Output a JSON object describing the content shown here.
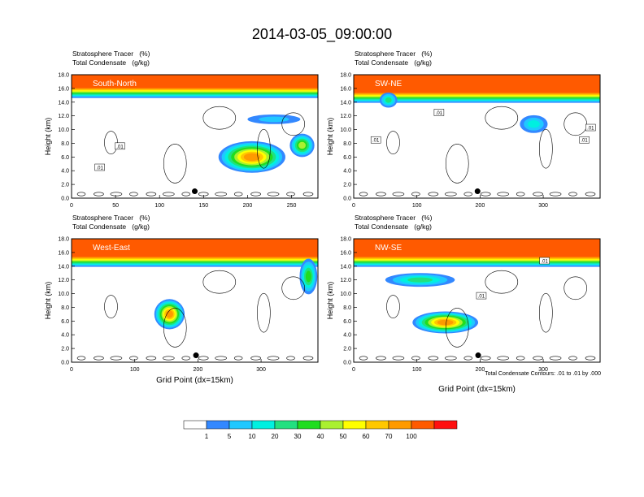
{
  "page": {
    "title": "2014-03-05_09:00:00"
  },
  "panel_header": {
    "line1": "Stratosphere Tracer   (%)",
    "line2": "Total Condensate   (g/kg)"
  },
  "axes": {
    "ylabel": "Height (km)",
    "xlabel": "Grid Point (dx=15km)",
    "yticks": [
      "0.0",
      "2.0",
      "4.0",
      "6.0",
      "8.0",
      "10.0",
      "12.0",
      "14.0",
      "16.0",
      "18.0"
    ]
  },
  "contour_note": "Total Condensate Contours: .01 to .01 by .000",
  "colorbar": {
    "labels": [
      "1",
      "5",
      "10",
      "20",
      "30",
      "40",
      "50",
      "60",
      "70",
      "100"
    ],
    "colors": [
      "#ffffff",
      "#3388ff",
      "#20c8ff",
      "#00f0e0",
      "#22e080",
      "#20dd20",
      "#aaf030",
      "#ffff00",
      "#ffc800",
      "#ff9a00",
      "#ff5a00",
      "#ff1010"
    ]
  },
  "chart_data": [
    {
      "type": "heatmap",
      "label": "South-North",
      "xlim": [
        0,
        280
      ],
      "ylim": [
        0,
        18
      ],
      "xticks": [
        "0",
        "50",
        "100",
        "150",
        "200",
        "250"
      ],
      "marker": {
        "x": 140,
        "y": 1.0
      },
      "contour_labels": [
        {
          "text": ".01",
          "x": 55,
          "y": 7.6
        },
        {
          "text": ".01",
          "x": 32,
          "y": 4.5
        }
      ],
      "tracer_features": [
        {
          "shape": "band",
          "x0": 0,
          "x1": 280,
          "y0": 16.2,
          "y1": 18,
          "value": 100
        },
        {
          "shape": "blob",
          "cx": 205,
          "cy": 6.0,
          "rx": 38,
          "ry": 2.3,
          "value": 70
        },
        {
          "shape": "blob",
          "cx": 262,
          "cy": 7.7,
          "rx": 14,
          "ry": 1.7,
          "value": 40
        },
        {
          "shape": "blob",
          "cx": 230,
          "cy": 11.5,
          "rx": 30,
          "ry": 0.7,
          "value": 5
        }
      ]
    },
    {
      "type": "heatmap",
      "label": "SW-NE",
      "xlim": [
        0,
        390
      ],
      "ylim": [
        0,
        18
      ],
      "xticks": [
        "0",
        "100",
        "200",
        "300"
      ],
      "marker": {
        "x": 196,
        "y": 1.0
      },
      "contour_labels": [
        {
          "text": ".01",
          "x": 135,
          "y": 12.5
        },
        {
          "text": ".01",
          "x": 35,
          "y": 8.5
        },
        {
          "text": ".01",
          "x": 375,
          "y": 10.3
        },
        {
          "text": ".01",
          "x": 365,
          "y": 8.5
        }
      ],
      "tracer_features": [
        {
          "shape": "band",
          "x0": 0,
          "x1": 390,
          "y0": 15.5,
          "y1": 18,
          "value": 100
        },
        {
          "shape": "blob",
          "cx": 285,
          "cy": 10.8,
          "rx": 22,
          "ry": 1.3,
          "value": 10
        },
        {
          "shape": "blob",
          "cx": 55,
          "cy": 14.3,
          "rx": 14,
          "ry": 1.1,
          "value": 20
        }
      ]
    },
    {
      "type": "heatmap",
      "label": "West-East",
      "xlim": [
        0,
        390
      ],
      "ylim": [
        0,
        18
      ],
      "xticks": [
        "0",
        "100",
        "200",
        "300"
      ],
      "marker": {
        "x": 197,
        "y": 1.0
      },
      "contour_labels": [],
      "tracer_features": [
        {
          "shape": "band",
          "x0": 0,
          "x1": 390,
          "y0": 15.5,
          "y1": 18,
          "value": 100
        },
        {
          "shape": "blob",
          "cx": 155,
          "cy": 7.0,
          "rx": 24,
          "ry": 2.2,
          "value": 70
        },
        {
          "shape": "blob",
          "cx": 375,
          "cy": 12.5,
          "rx": 14,
          "ry": 2.6,
          "value": 30
        }
      ]
    },
    {
      "type": "heatmap",
      "label": "NW-SE",
      "xlim": [
        0,
        390
      ],
      "ylim": [
        0,
        18
      ],
      "xticks": [
        "0",
        "100",
        "200",
        "300"
      ],
      "marker": {
        "x": 197,
        "y": 1.0
      },
      "contour_labels": [
        {
          "text": ".01",
          "x": 302,
          "y": 14.8
        },
        {
          "text": ".01",
          "x": 202,
          "y": 9.7
        }
      ],
      "tracer_features": [
        {
          "shape": "band",
          "x0": 0,
          "x1": 390,
          "y0": 15.5,
          "y1": 18,
          "value": 100
        },
        {
          "shape": "blob",
          "cx": 145,
          "cy": 5.8,
          "rx": 52,
          "ry": 1.6,
          "value": 70
        },
        {
          "shape": "blob",
          "cx": 105,
          "cy": 12.0,
          "rx": 55,
          "ry": 1.0,
          "value": 20
        }
      ]
    }
  ]
}
